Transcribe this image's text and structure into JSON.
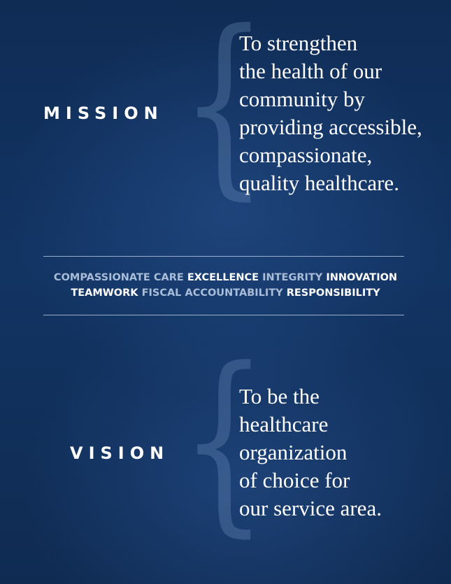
{
  "mission": {
    "heading": "MISSION",
    "brace": "{",
    "lines": [
      "To strengthen",
      "the health of our",
      "community by",
      "providing accessible,",
      "compassionate,",
      "quality healthcare."
    ]
  },
  "values": {
    "line1": [
      {
        "text": "COMPASSIONATE CARE",
        "tone": "muted"
      },
      {
        "text": "EXCELLENCE",
        "tone": "light"
      },
      {
        "text": "INTEGRITY",
        "tone": "muted"
      },
      {
        "text": "INNOVATION",
        "tone": "light"
      }
    ],
    "line2": [
      {
        "text": "TEAMWORK",
        "tone": "light"
      },
      {
        "text": "FISCAL ACCOUNTABILITY",
        "tone": "muted"
      },
      {
        "text": "RESPONSIBILITY",
        "tone": "light"
      }
    ]
  },
  "vision": {
    "heading": "VISION",
    "brace": "{",
    "lines": [
      "To be the",
      "healthcare",
      "organization",
      "of choice for",
      "our service area."
    ]
  },
  "colors": {
    "background": "#123463",
    "text": "#ffffff",
    "muted_value": "#a9bdd8",
    "brace": "#8aa6cf"
  }
}
